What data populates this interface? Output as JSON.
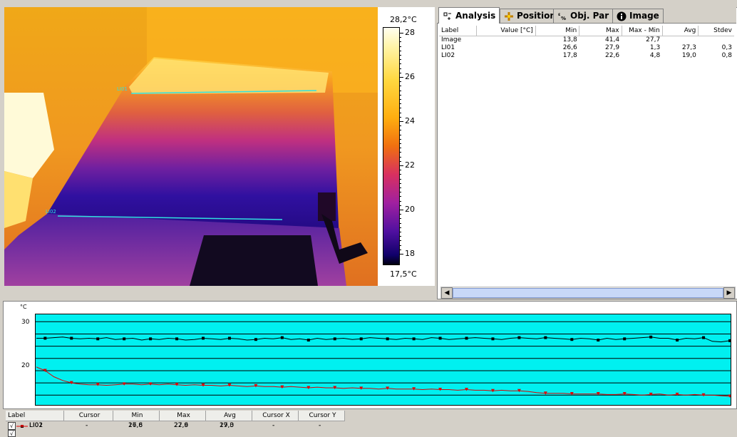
{
  "colors": {
    "plot_bg": "#00f0f0",
    "series_li01": "#000000",
    "series_li02": "#e00000",
    "measure_line": "#30e0e0"
  },
  "scale": {
    "max_label": "28,2°C",
    "min_label": "17,5°C",
    "ticks": [
      "28",
      "26",
      "24",
      "22",
      "20",
      "18"
    ]
  },
  "image_markers": {
    "li01": "LI01",
    "li02": "LI02"
  },
  "tabs": [
    {
      "label": "Analysis",
      "icon": "analysis-icon"
    },
    {
      "label": "Position",
      "icon": "position-icon"
    },
    {
      "label": "Obj. Par",
      "icon": "object-parameters-icon"
    },
    {
      "label": "Image",
      "icon": "info-icon"
    }
  ],
  "analysis_table": {
    "columns": [
      "Label",
      "Value [°C]",
      "Min",
      "Max",
      "Max - Min",
      "Avg",
      "Stdev"
    ],
    "rows": [
      {
        "label": "Image",
        "value": "",
        "min": "13,8",
        "max": "41,4",
        "range": "27,7",
        "avg": "",
        "stdev": ""
      },
      {
        "label": "LI01",
        "value": "",
        "min": "26,6",
        "max": "27,9",
        "range": "1,3",
        "avg": "27,3",
        "stdev": "0,3"
      },
      {
        "label": "LI02",
        "value": "",
        "min": "17,8",
        "max": "22,6",
        "range": "4,8",
        "avg": "19,0",
        "stdev": "0,8"
      }
    ]
  },
  "chart_data": {
    "type": "line",
    "ylabel": "°C",
    "yticks": [
      "30",
      "20"
    ],
    "ylim": [
      16.4,
      31.2
    ],
    "grid": true,
    "series": [
      {
        "name": "LI01",
        "values": [
          27.3,
          27.3,
          27.4,
          27.5,
          27.3,
          27.2,
          27.3,
          27.2,
          27.4,
          27.1,
          27.2,
          27.3,
          27.0,
          27.2,
          27.1,
          27.3,
          27.2,
          27.0,
          27.1,
          27.3,
          27.2,
          27.1,
          27.3,
          27.2,
          27.0,
          27.1,
          27.3,
          27.2,
          27.4,
          27.1,
          27.2,
          27.0,
          27.3,
          27.1,
          27.2,
          27.3,
          27.1,
          27.2,
          27.4,
          27.3,
          27.2,
          27.1,
          27.3,
          27.2,
          27.1,
          27.4,
          27.3,
          27.1,
          27.2,
          27.3,
          27.4,
          27.3,
          27.2,
          27.1,
          27.3,
          27.4,
          27.3,
          27.2,
          27.4,
          27.3,
          27.2,
          27.1,
          27.3,
          27.2,
          27.0,
          27.3,
          27.1,
          27.2,
          27.3,
          27.4,
          27.5,
          27.3,
          27.3,
          27.0,
          27.3,
          27.2,
          27.4,
          26.8,
          26.7,
          26.9
        ]
      },
      {
        "name": "LI02",
        "values": [
          22.6,
          22.0,
          21.0,
          20.4,
          20.0,
          19.8,
          19.7,
          19.7,
          19.6,
          19.7,
          19.8,
          19.8,
          19.7,
          19.8,
          19.7,
          19.8,
          19.7,
          19.6,
          19.7,
          19.6,
          19.6,
          19.5,
          19.6,
          19.5,
          19.4,
          19.5,
          19.4,
          19.4,
          19.3,
          19.4,
          19.3,
          19.2,
          19.3,
          19.2,
          19.2,
          19.1,
          19.2,
          19.1,
          19.1,
          19.0,
          19.1,
          19.0,
          19.0,
          19.0,
          18.9,
          19.0,
          18.9,
          18.9,
          18.8,
          18.9,
          18.8,
          18.8,
          18.7,
          18.8,
          18.7,
          18.7,
          18.6,
          18.4,
          18.3,
          18.3,
          18.3,
          18.2,
          18.2,
          18.2,
          18.2,
          18.1,
          18.1,
          18.2,
          18.1,
          18.0,
          18.1,
          18.2,
          18.0,
          18.1,
          18.0,
          18.1,
          18.0,
          18.0,
          17.9,
          17.8
        ]
      }
    ]
  },
  "legend_table": {
    "columns": [
      "Label",
      "Cursor",
      "Min",
      "Max",
      "Avg",
      "Cursor X",
      "Cursor Y"
    ],
    "rows": [
      {
        "label": "LI01",
        "cursor": "-",
        "min": "26,6",
        "max": "27,9",
        "avg": "27,3",
        "cx": "-",
        "cy": "-",
        "checked": "√"
      },
      {
        "label": "LI02",
        "cursor": "-",
        "min": "17,8",
        "max": "22,6",
        "avg": "19,0",
        "cx": "-",
        "cy": "-",
        "checked": "√"
      }
    ]
  }
}
